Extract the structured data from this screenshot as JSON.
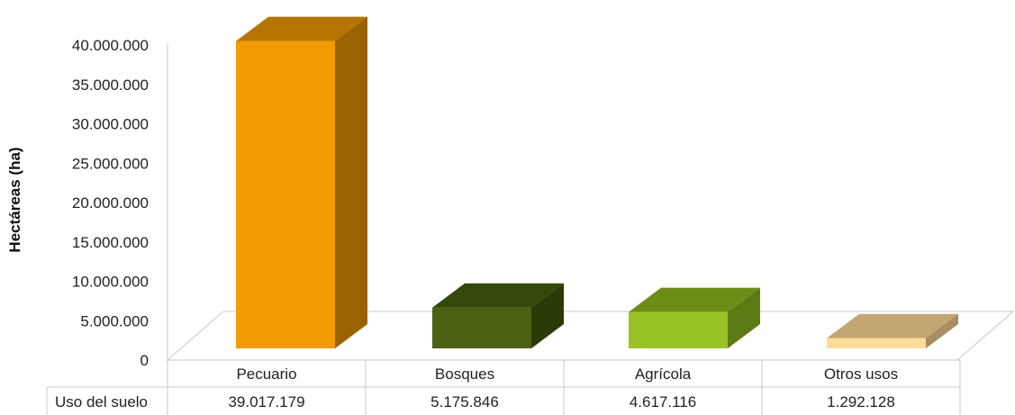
{
  "chart_data": {
    "type": "bar",
    "ylabel": "Hectáreas (ha)",
    "ylim": [
      0,
      40000000
    ],
    "y_ticks": [
      "0",
      "5.000.000",
      "10.000.000",
      "15.000.000",
      "20.000.000",
      "25.000.000",
      "30.000.000",
      "35.000.000",
      "40.000.000"
    ],
    "categories": [
      "Pecuario",
      "Bosques",
      "Agrícola",
      "Otros usos"
    ],
    "series": [
      {
        "name": "Uso del suelo",
        "values": [
          39017179,
          5175846,
          4617116,
          1292128
        ],
        "value_labels": [
          "39.017.179",
          "5.175.846",
          "4.617.116",
          "1.292.128"
        ]
      }
    ],
    "data_table": true,
    "three_d": true,
    "grid": false,
    "legend": "none",
    "colors": {
      "Pecuario": {
        "front": "#F39C00",
        "top": "#B87400",
        "side": "#9A6300"
      },
      "Bosques": {
        "front": "#4A6212",
        "top": "#34480A",
        "side": "#2A3A08"
      },
      "Agrícola": {
        "front": "#99C225",
        "top": "#6E8D18",
        "side": "#5E7A14"
      },
      "Otros usos": {
        "front": "#FDDC99",
        "top": "#C3A672",
        "side": "#A88E60"
      }
    }
  }
}
